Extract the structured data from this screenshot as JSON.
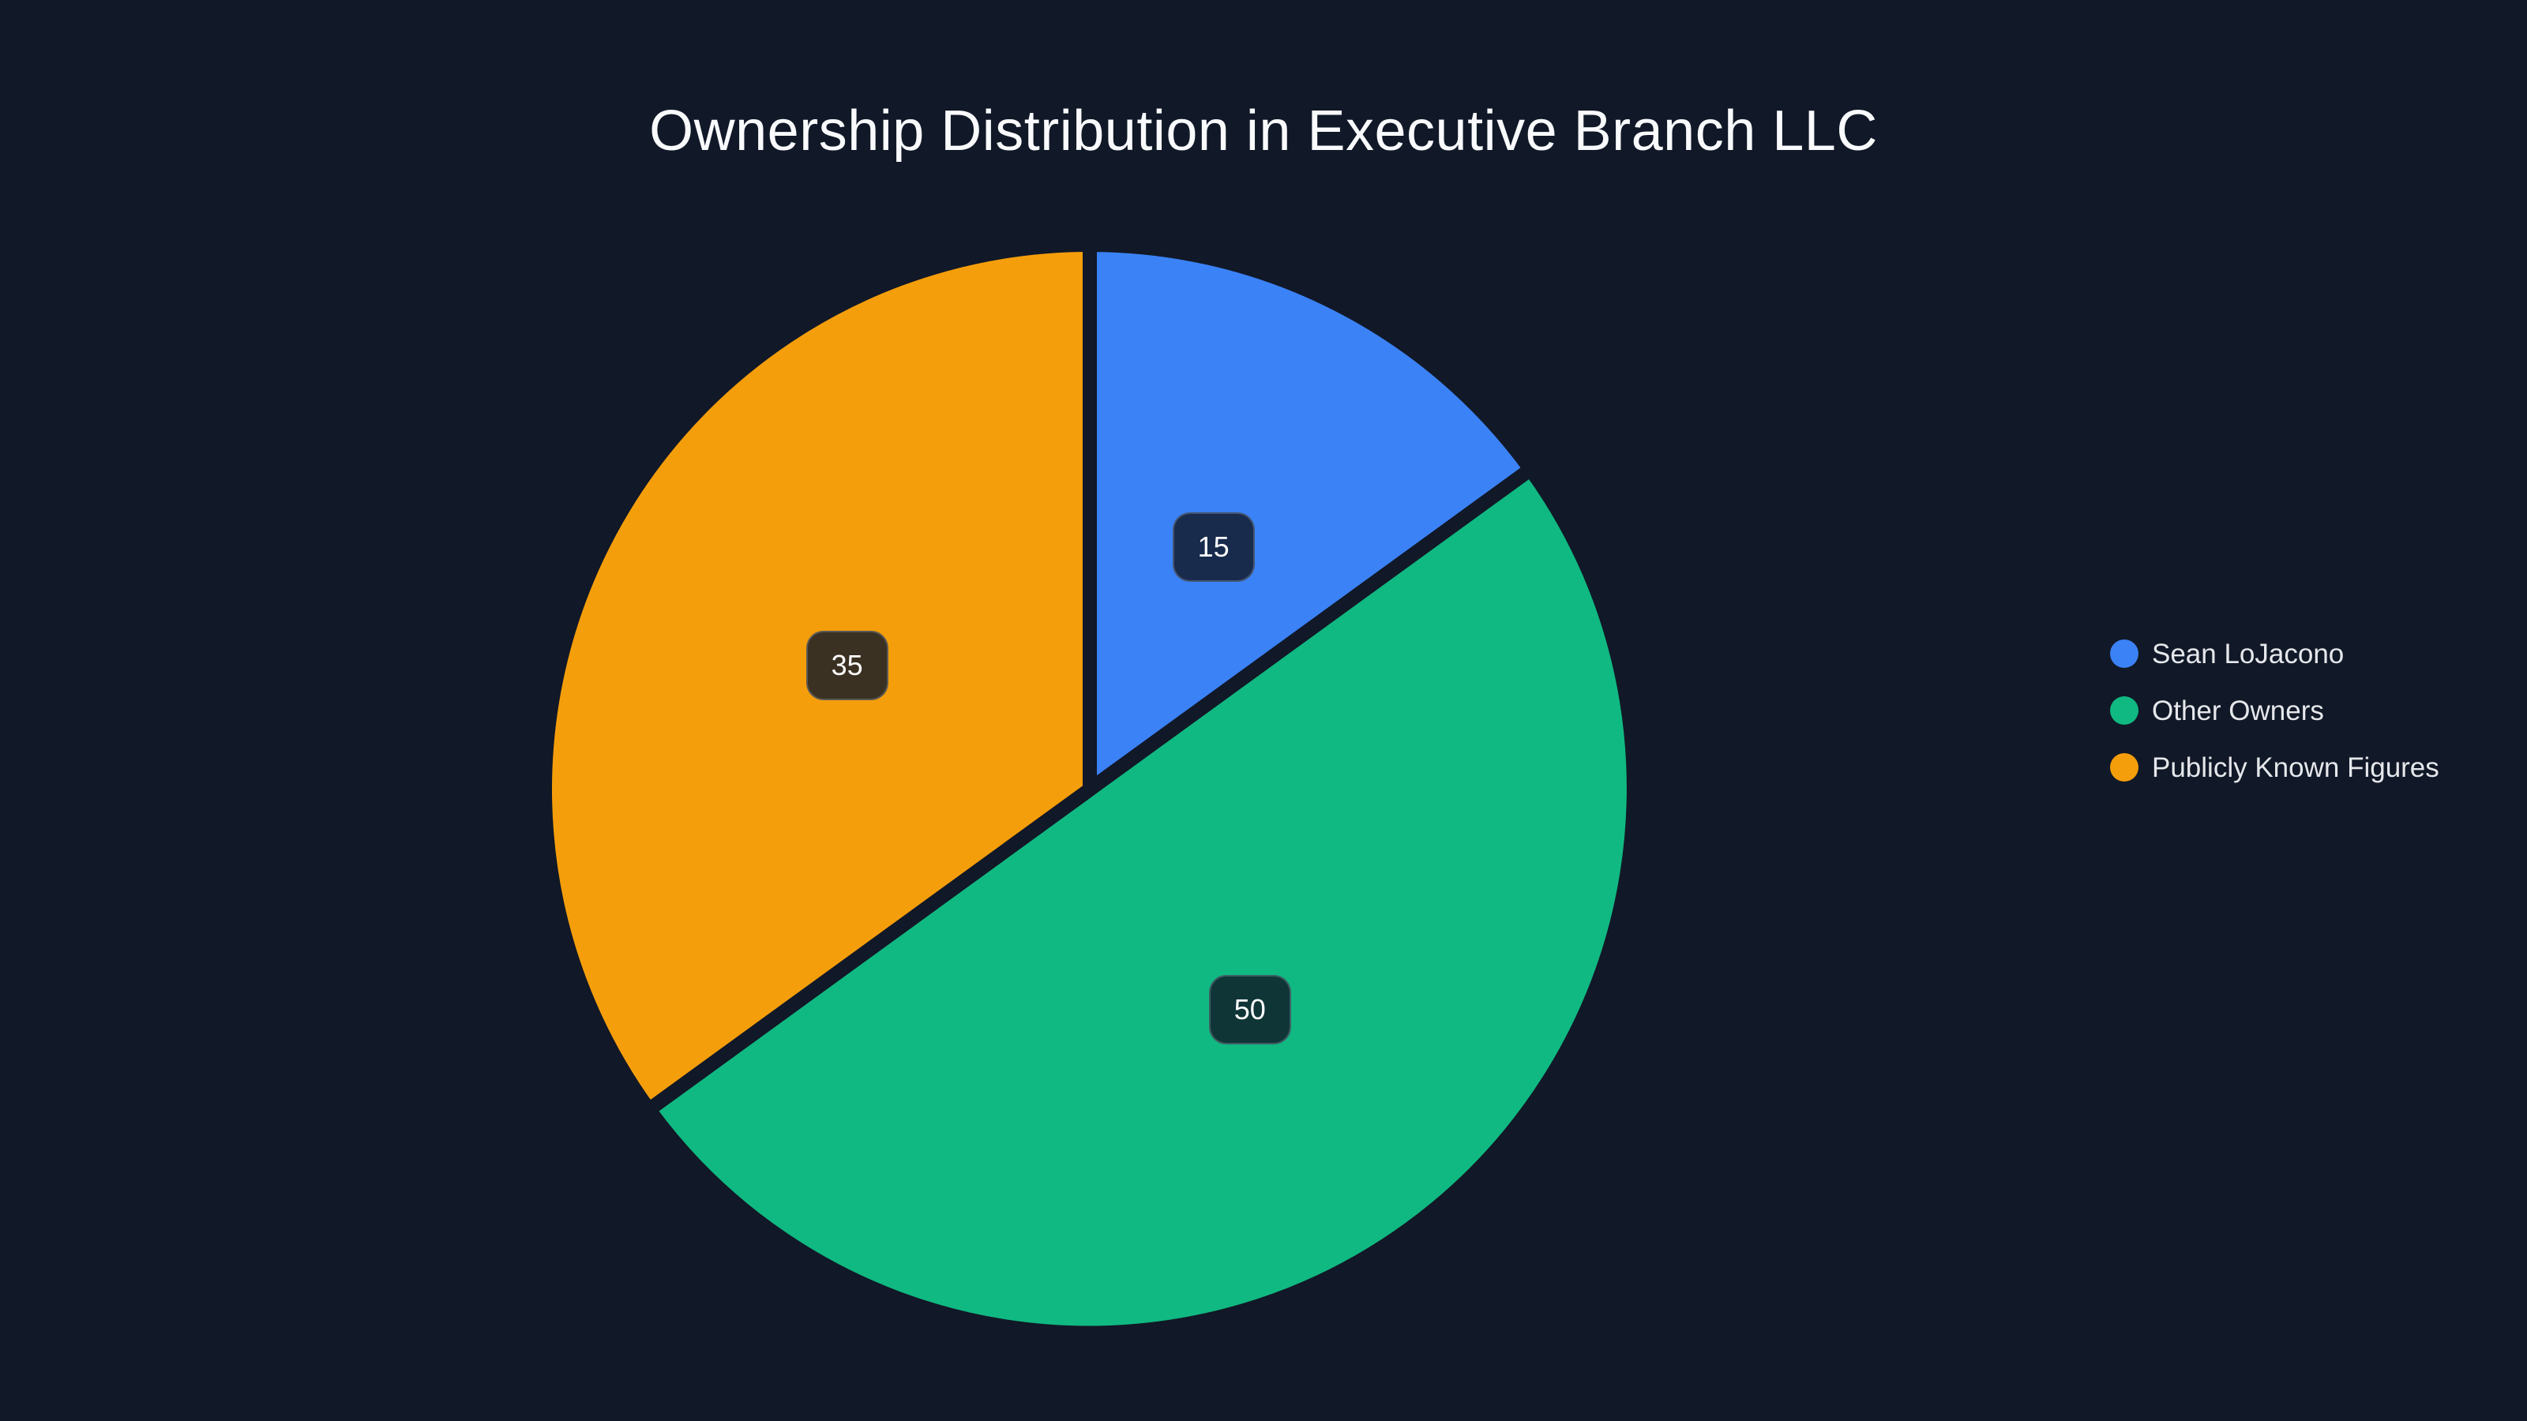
{
  "page": {
    "background_color": "#111827"
  },
  "chart_data": {
    "type": "pie",
    "title": "Ownership Distribution in Executive Branch LLC",
    "labels": [
      "Sean LoJacono",
      "Other Owners",
      "Publicly Known Figures"
    ],
    "values": [
      15,
      50,
      35
    ],
    "colors": [
      "#3b82f6",
      "#10b981",
      "#f59e0b"
    ],
    "value_labels": [
      "15",
      "50",
      "35"
    ],
    "start_angle": "12-oclock",
    "direction": "clockwise",
    "legend_position": "right",
    "title_color": "#f8fafc",
    "legend_text_color": "#e5e7eb",
    "value_label_box_color": "rgba(17,24,39,0.82)",
    "slice_gap_color": "#111827"
  }
}
